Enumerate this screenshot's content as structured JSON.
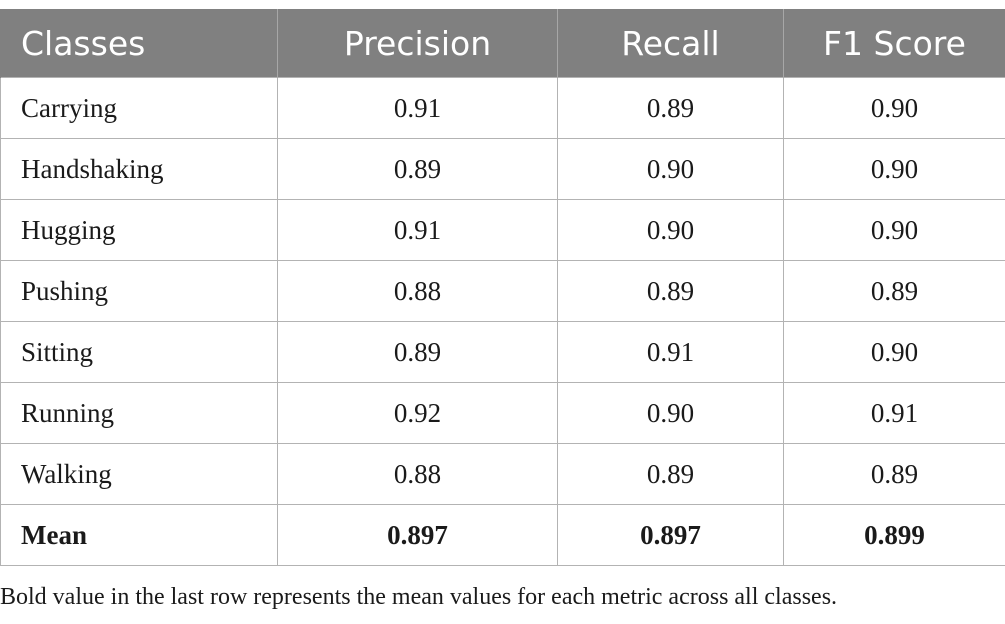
{
  "table": {
    "headers": [
      "Classes",
      "Precision",
      "Recall",
      "F1 Score"
    ],
    "rows": [
      {
        "class": "Carrying",
        "precision": "0.91",
        "recall": "0.89",
        "f1": "0.90"
      },
      {
        "class": "Handshaking",
        "precision": "0.89",
        "recall": "0.90",
        "f1": "0.90"
      },
      {
        "class": "Hugging",
        "precision": "0.91",
        "recall": "0.90",
        "f1": "0.90"
      },
      {
        "class": "Pushing",
        "precision": "0.88",
        "recall": "0.89",
        "f1": "0.89"
      },
      {
        "class": "Sitting",
        "precision": "0.89",
        "recall": "0.91",
        "f1": "0.90"
      },
      {
        "class": "Running",
        "precision": "0.92",
        "recall": "0.90",
        "f1": "0.91"
      },
      {
        "class": "Walking",
        "precision": "0.88",
        "recall": "0.89",
        "f1": "0.89"
      },
      {
        "class": "Mean",
        "precision": "0.897",
        "recall": "0.897",
        "f1": "0.899"
      }
    ],
    "header_color": "#808080"
  },
  "footnote": "Bold value in the last row represents the mean values for each metric across all classes."
}
